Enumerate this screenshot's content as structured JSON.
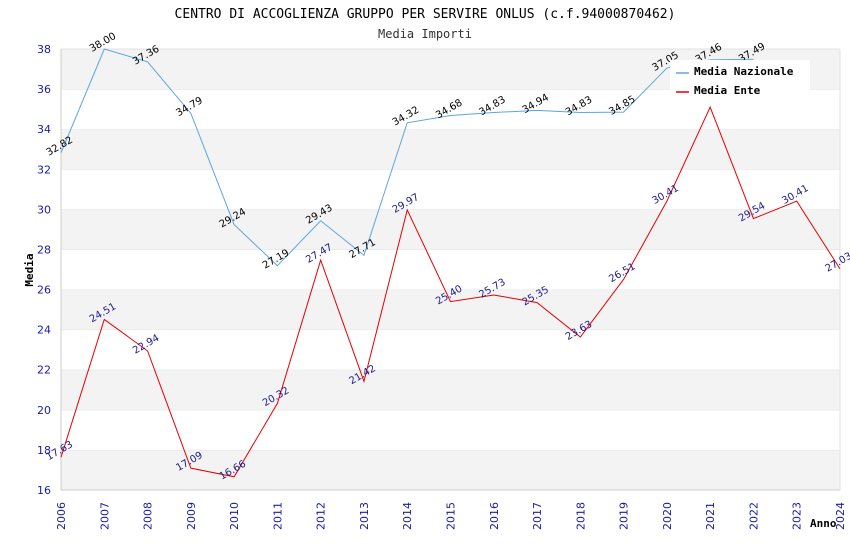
{
  "chart_data": {
    "type": "line",
    "title": "CENTRO DI ACCOGLIENZA GRUPPO PER SERVIRE ONLUS (c.f.94000870462)",
    "subtitle": "Media Importi",
    "xlabel": "Anno",
    "ylabel": "Media",
    "ylim": [
      16,
      38
    ],
    "yticks": [
      16,
      18,
      20,
      22,
      24,
      26,
      28,
      30,
      32,
      34,
      36,
      38
    ],
    "grid": "horizontal bands",
    "legend_position": "top-right",
    "categories": [
      "2006",
      "2007",
      "2008",
      "2009",
      "2010",
      "2011",
      "2012",
      "2013",
      "2014",
      "2015",
      "2016",
      "2017",
      "2018",
      "2019",
      "2020",
      "2021",
      "2022",
      "2023",
      "2024"
    ],
    "series": [
      {
        "name": "Media Nazionale",
        "color": "#5aa5e6",
        "values": [
          32.82,
          38.0,
          37.36,
          34.79,
          29.24,
          27.19,
          29.43,
          27.71,
          34.32,
          34.68,
          34.83,
          34.94,
          34.83,
          34.85,
          37.05,
          37.46,
          37.49,
          null,
          null
        ],
        "labels": [
          "32.82",
          "38.00",
          "37.36",
          "34.79",
          "29.24",
          "27.19",
          "29.43",
          "27.71",
          "34.32",
          "34.68",
          "34.83",
          "34.94",
          "34.83",
          "34.85",
          "37.05",
          "37.46",
          "37.49",
          "",
          ""
        ]
      },
      {
        "name": "Media Ente",
        "color": "#e60000",
        "values": [
          17.63,
          24.51,
          22.94,
          17.09,
          16.66,
          20.32,
          27.47,
          21.42,
          29.97,
          25.4,
          25.73,
          25.35,
          23.63,
          26.51,
          30.41,
          35.1,
          29.54,
          30.41,
          27.03
        ],
        "labels": [
          "17.63",
          "24.51",
          "22.94",
          "17.09",
          "16.66",
          "20.32",
          "27.47",
          "21.42",
          "29.97",
          "25.40",
          "25.73",
          "25.35",
          "23.63",
          "26.51",
          "30.41",
          "",
          "29.54",
          "30.41",
          "27.03"
        ]
      }
    ]
  }
}
